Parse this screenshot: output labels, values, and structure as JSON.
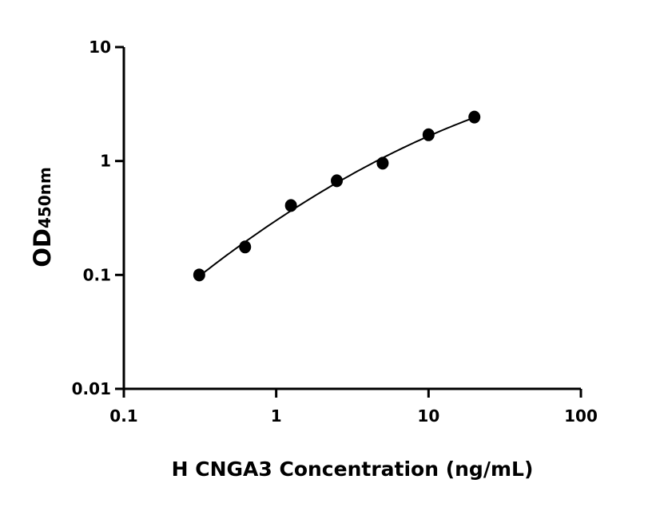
{
  "chart_data": {
    "type": "scatter",
    "title": "",
    "xlabel": "H CNGA3 Concentration (ng/mL)",
    "ylabel": "OD",
    "ylabel_subscript": "450nm",
    "x_scale": "log",
    "y_scale": "log",
    "xlim": [
      0.1,
      100
    ],
    "ylim": [
      0.01,
      10
    ],
    "x_ticks": [
      "0.1",
      "1",
      "10",
      "100"
    ],
    "y_ticks": [
      "0.01",
      "0.1",
      "1",
      "10"
    ],
    "grid": false,
    "fit_curve": true,
    "marker_color": "#000000",
    "x": [
      0.3125,
      0.625,
      1.25,
      2.5,
      5,
      10,
      20
    ],
    "y": [
      0.1,
      0.176,
      0.407,
      0.671,
      0.957,
      1.7,
      2.43
    ]
  }
}
